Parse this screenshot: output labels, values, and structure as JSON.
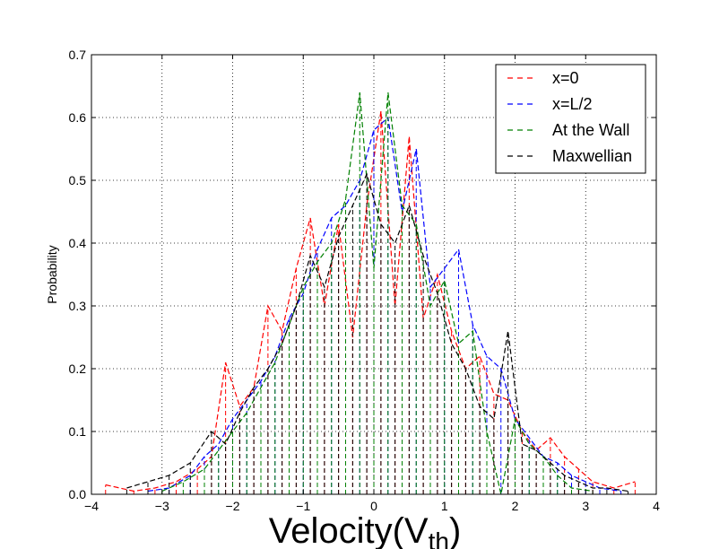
{
  "chart_data": {
    "type": "line",
    "title": "",
    "xlabel": "Velocity(V",
    "xlabel_subscript": "th",
    "xlabel_suffix": ")",
    "ylabel": "Probability",
    "xlim": [
      -4,
      4
    ],
    "ylim": [
      0,
      0.7
    ],
    "x_ticks": [
      -4,
      -3,
      -2,
      -1,
      0,
      1,
      2,
      3,
      4
    ],
    "x_tick_labels": [
      "−4",
      "−3",
      "−2",
      "−1",
      "0",
      "1",
      "2",
      "3",
      "4"
    ],
    "y_ticks": [
      0,
      0.1,
      0.2,
      0.3,
      0.4,
      0.5,
      0.6,
      0.7
    ],
    "y_tick_labels": [
      "0.0",
      "0.1",
      "0.2",
      "0.3",
      "0.4",
      "0.5",
      "0.6",
      "0.7"
    ],
    "grid": true,
    "legend_position": "top-right",
    "series": [
      {
        "name": "x=0",
        "color": "#ff0000",
        "x": [
          -3.8,
          -3.4,
          -3.1,
          -2.8,
          -2.5,
          -2.3,
          -2.1,
          -1.9,
          -1.7,
          -1.5,
          -1.3,
          -1.1,
          -0.9,
          -0.7,
          -0.5,
          -0.3,
          -0.1,
          0.1,
          0.3,
          0.5,
          0.7,
          0.9,
          1.1,
          1.3,
          1.5,
          1.7,
          1.9,
          2.1,
          2.3,
          2.5,
          2.7,
          2.9,
          3.1,
          3.4,
          3.7
        ],
        "y": [
          0.015,
          0.005,
          0.01,
          0.02,
          0.04,
          0.06,
          0.21,
          0.14,
          0.17,
          0.3,
          0.26,
          0.36,
          0.44,
          0.3,
          0.43,
          0.25,
          0.46,
          0.61,
          0.3,
          0.57,
          0.28,
          0.35,
          0.26,
          0.2,
          0.22,
          0.16,
          0.15,
          0.1,
          0.07,
          0.09,
          0.06,
          0.04,
          0.02,
          0.01,
          0.02
        ]
      },
      {
        "name": "x=L/2",
        "color": "#0000ff",
        "x": [
          -3.2,
          -2.9,
          -2.6,
          -2.4,
          -2.2,
          -2.0,
          -1.8,
          -1.6,
          -1.4,
          -1.2,
          -1.0,
          -0.8,
          -0.6,
          -0.4,
          -0.2,
          0.0,
          0.2,
          0.4,
          0.6,
          0.8,
          1.0,
          1.2,
          1.4,
          1.6,
          1.8,
          2.0,
          2.2,
          2.4,
          2.6,
          2.8,
          3.0,
          3.2,
          3.5
        ],
        "y": [
          0.005,
          0.01,
          0.03,
          0.06,
          0.08,
          0.12,
          0.15,
          0.18,
          0.22,
          0.28,
          0.32,
          0.39,
          0.44,
          0.46,
          0.5,
          0.58,
          0.6,
          0.45,
          0.55,
          0.33,
          0.36,
          0.39,
          0.27,
          0.22,
          0.2,
          0.12,
          0.09,
          0.06,
          0.05,
          0.03,
          0.02,
          0.01,
          0.005
        ]
      },
      {
        "name": "At the Wall",
        "color": "#008000",
        "x": [
          -3.0,
          -2.7,
          -2.4,
          -2.2,
          -2.0,
          -1.8,
          -1.6,
          -1.4,
          -1.2,
          -1.0,
          -0.8,
          -0.6,
          -0.4,
          -0.2,
          0.0,
          0.2,
          0.4,
          0.6,
          0.8,
          1.0,
          1.2,
          1.4,
          1.6,
          1.8,
          2.0,
          2.2,
          2.4,
          2.6,
          2.8,
          3.1
        ],
        "y": [
          0.005,
          0.02,
          0.04,
          0.07,
          0.1,
          0.13,
          0.17,
          0.21,
          0.27,
          0.33,
          0.37,
          0.4,
          0.47,
          0.64,
          0.36,
          0.64,
          0.46,
          0.43,
          0.3,
          0.34,
          0.24,
          0.26,
          0.1,
          0.0,
          0.12,
          0.08,
          0.06,
          0.03,
          0.01,
          0.005
        ]
      },
      {
        "name": "Maxwellian",
        "color": "#000000",
        "x": [
          -3.5,
          -3.2,
          -2.9,
          -2.6,
          -2.3,
          -2.1,
          -1.9,
          -1.7,
          -1.5,
          -1.3,
          -1.1,
          -0.9,
          -0.7,
          -0.5,
          -0.3,
          -0.1,
          0.1,
          0.3,
          0.5,
          0.7,
          0.9,
          1.1,
          1.3,
          1.5,
          1.7,
          1.9,
          2.1,
          2.3,
          2.5,
          2.7,
          2.9,
          3.1,
          3.3,
          3.6
        ],
        "y": [
          0.01,
          0.02,
          0.03,
          0.05,
          0.1,
          0.08,
          0.13,
          0.17,
          0.2,
          0.24,
          0.3,
          0.38,
          0.33,
          0.41,
          0.46,
          0.51,
          0.43,
          0.4,
          0.46,
          0.38,
          0.32,
          0.24,
          0.2,
          0.14,
          0.12,
          0.26,
          0.08,
          0.07,
          0.05,
          0.03,
          0.02,
          0.01,
          0.01,
          0.005
        ]
      }
    ]
  }
}
